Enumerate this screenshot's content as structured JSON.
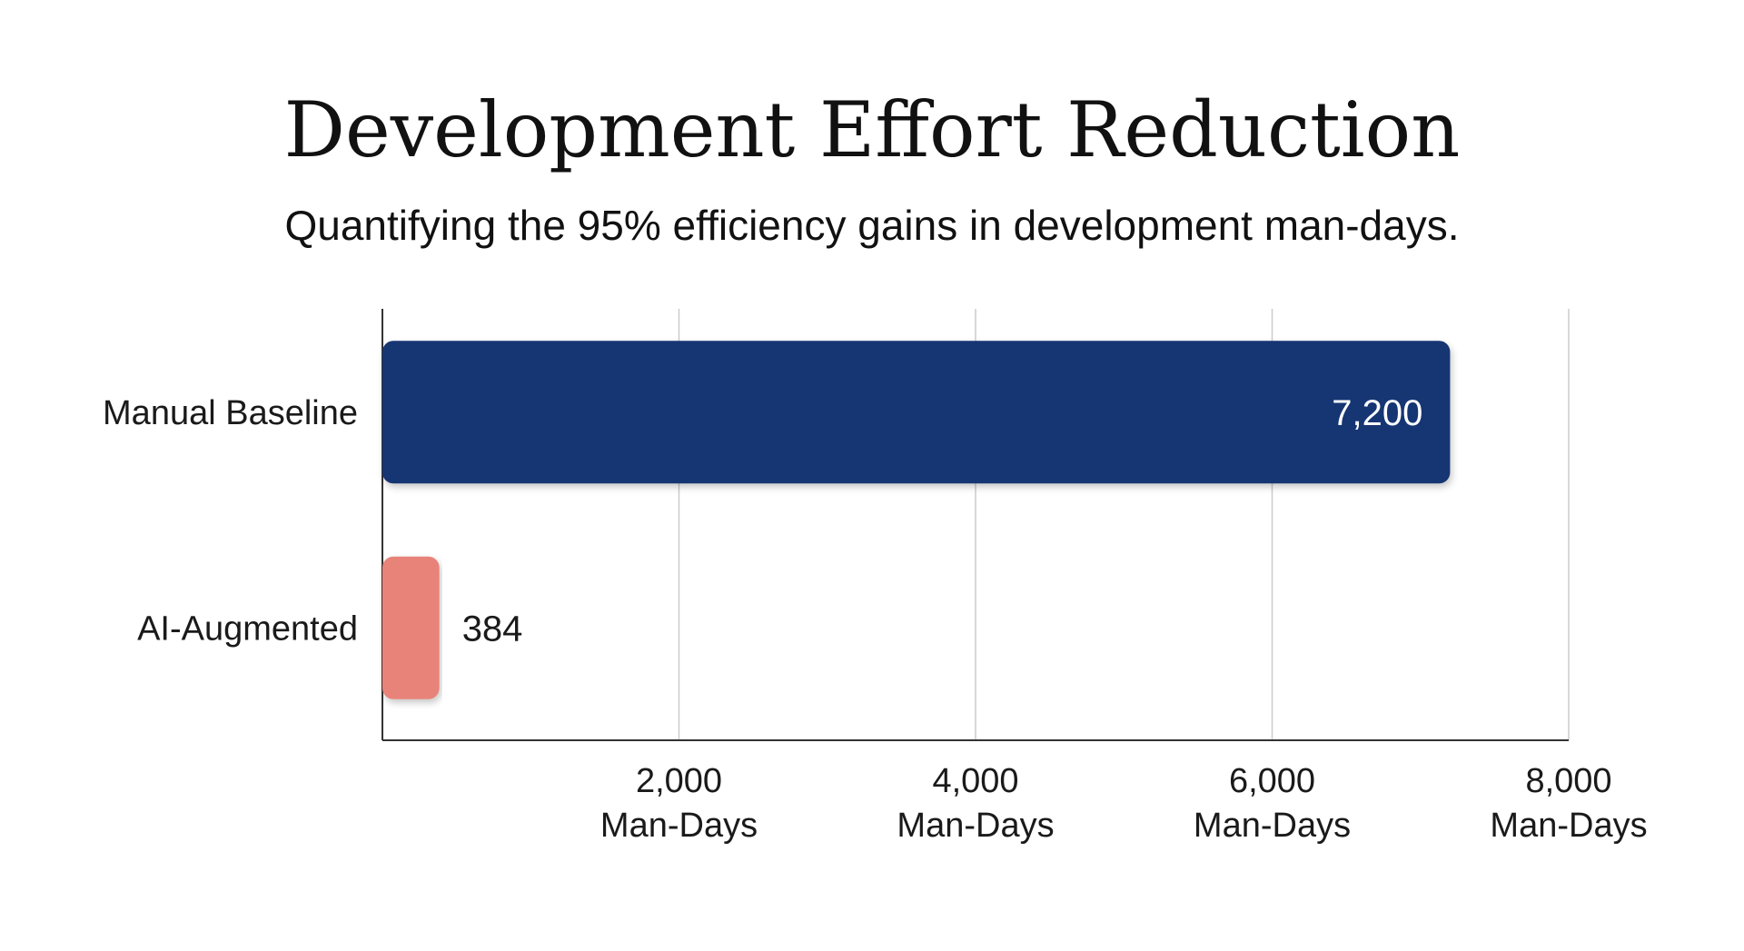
{
  "chart_data": {
    "type": "bar",
    "orientation": "horizontal",
    "title": "Development Effort Reduction",
    "subtitle": "Quantifying the 95% efficiency gains in development man-days.",
    "categories": [
      "Manual Baseline",
      "AI-Augmented"
    ],
    "values": [
      7200,
      384
    ],
    "value_labels": [
      "7,200",
      "384"
    ],
    "bar_colors": [
      "#173573",
      "#e8837a"
    ],
    "value_label_colors": [
      "#ffffff",
      "#1a1a1a"
    ],
    "value_label_position": [
      "inside-end",
      "outside-end"
    ],
    "xlim": [
      0,
      8000
    ],
    "ticks": [
      {
        "value": 2000,
        "label": "2,000",
        "unit": "Man-Days"
      },
      {
        "value": 4000,
        "label": "4,000",
        "unit": "Man-Days"
      },
      {
        "value": 6000,
        "label": "6,000",
        "unit": "Man-Days"
      },
      {
        "value": 8000,
        "label": "8,000",
        "unit": "Man-Days"
      }
    ],
    "xlabel": "",
    "ylabel": "",
    "grid": "vertical",
    "legend": "none",
    "gridline_color": "#cccccc",
    "axis_color": "#333333"
  }
}
